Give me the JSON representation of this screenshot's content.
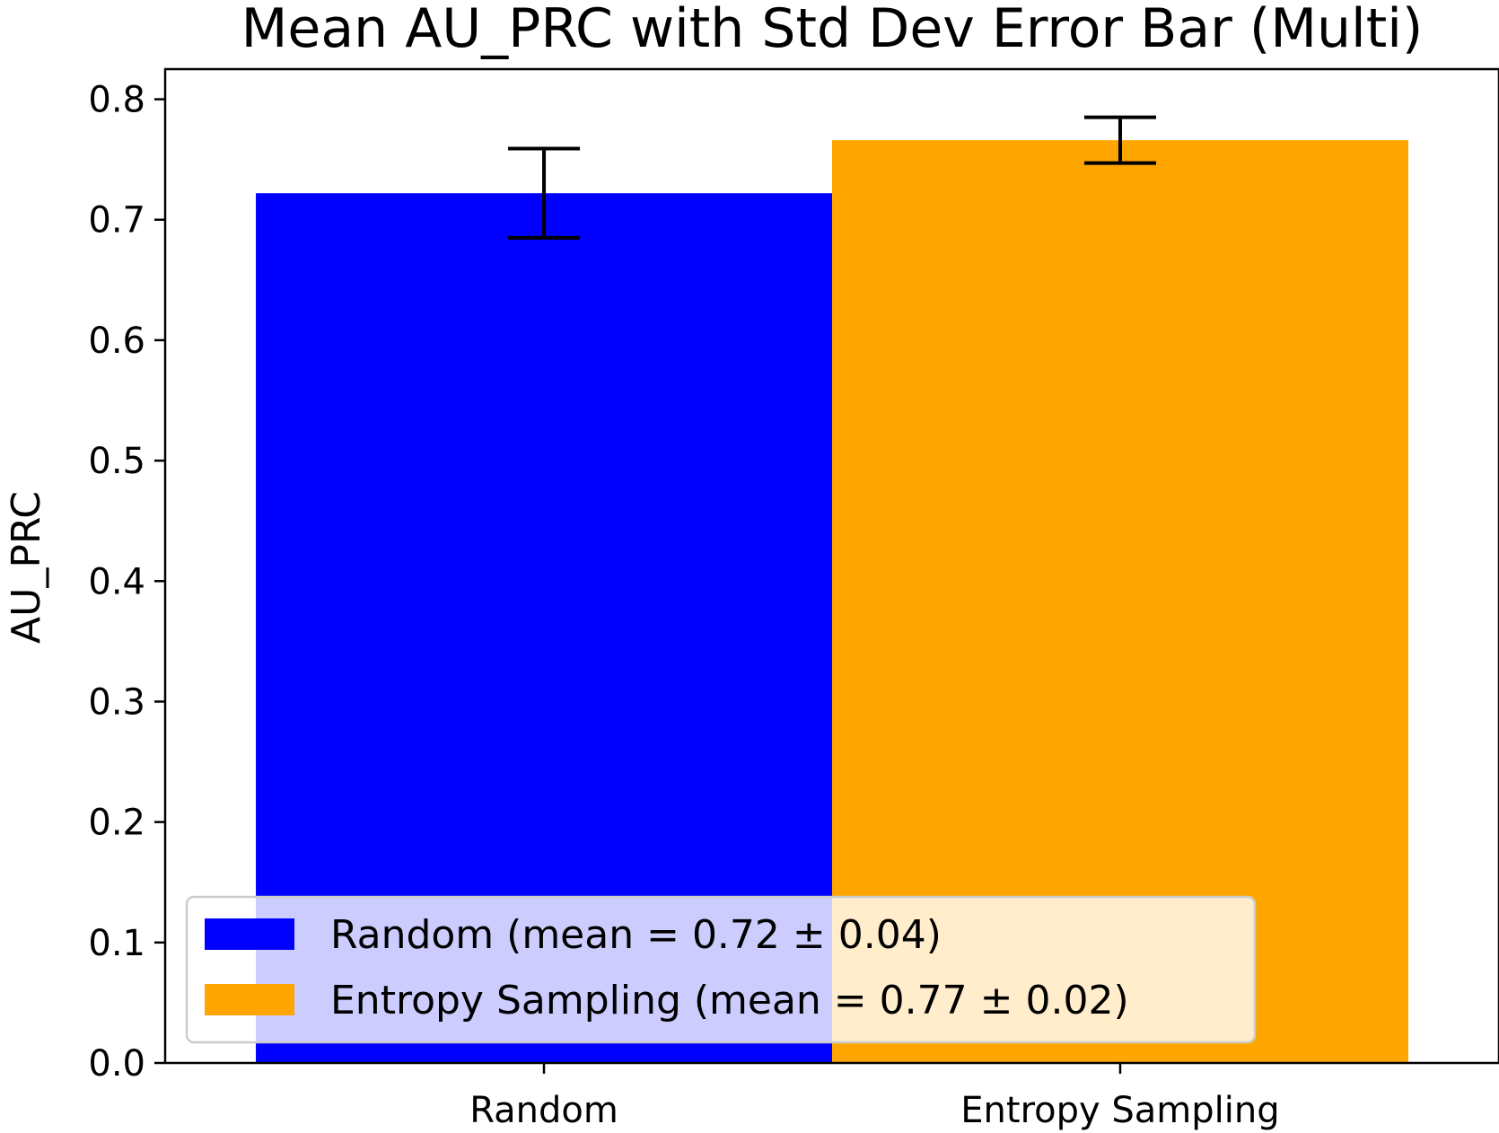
{
  "chart_data": {
    "type": "bar",
    "title": "Mean AU_PRC with Std Dev Error Bar (Multi)",
    "xlabel": "",
    "ylabel": "AU_PRC",
    "categories": [
      "Random",
      "Entropy Sampling"
    ],
    "values": [
      0.722,
      0.766
    ],
    "errors": [
      0.037,
      0.019
    ],
    "colors": [
      "#0000ff",
      "#ffa500"
    ],
    "ylim": [
      0,
      0.825
    ],
    "yticks": [
      "0.0",
      "0.1",
      "0.2",
      "0.3",
      "0.4",
      "0.5",
      "0.6",
      "0.7",
      "0.8"
    ],
    "grid": false,
    "legend": {
      "placement": "lower-left",
      "entries": [
        "Random (mean = 0.72 ± 0.04)",
        "Entropy Sampling (mean = 0.77 ± 0.02)"
      ]
    }
  }
}
